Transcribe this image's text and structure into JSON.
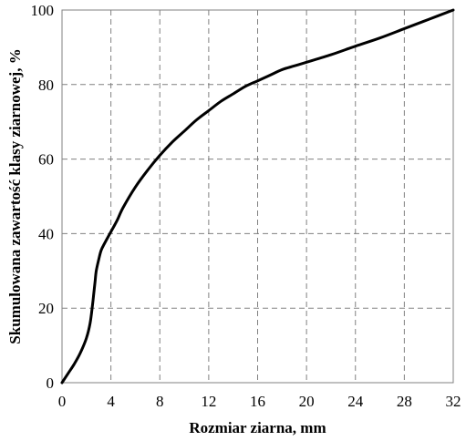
{
  "chart_data": {
    "type": "line",
    "xlabel": "Rozmiar ziarna, mm",
    "ylabel": "Skumulowana zawartość klasy ziarnowej, %",
    "xlim": [
      0,
      32
    ],
    "ylim": [
      0,
      100
    ],
    "xticks": [
      0,
      4,
      8,
      12,
      16,
      20,
      24,
      28,
      32
    ],
    "yticks": [
      0,
      20,
      40,
      60,
      80,
      100
    ],
    "grid": true,
    "series": [
      {
        "color": "#000000",
        "x": [
          0,
          0.5,
          1,
          1.5,
          2,
          2.3,
          2.5,
          2.6,
          2.7,
          2.8,
          3,
          3.2,
          3.5,
          4,
          4.5,
          5,
          6,
          7,
          8,
          9,
          10,
          11,
          12,
          13,
          14,
          15,
          16,
          17,
          18,
          19,
          20,
          22,
          24,
          26,
          28,
          30,
          32
        ],
        "y": [
          0,
          2.5,
          5,
          8,
          12,
          16,
          21,
          24,
          27,
          30,
          33,
          35.5,
          37.5,
          40.5,
          43.5,
          47,
          52.5,
          57,
          61,
          64.5,
          67.5,
          70.5,
          73,
          75.5,
          77.5,
          79.5,
          81,
          82.5,
          84,
          85,
          86,
          88,
          90.3,
          92.5,
          95,
          97.5,
          100
        ]
      }
    ]
  }
}
